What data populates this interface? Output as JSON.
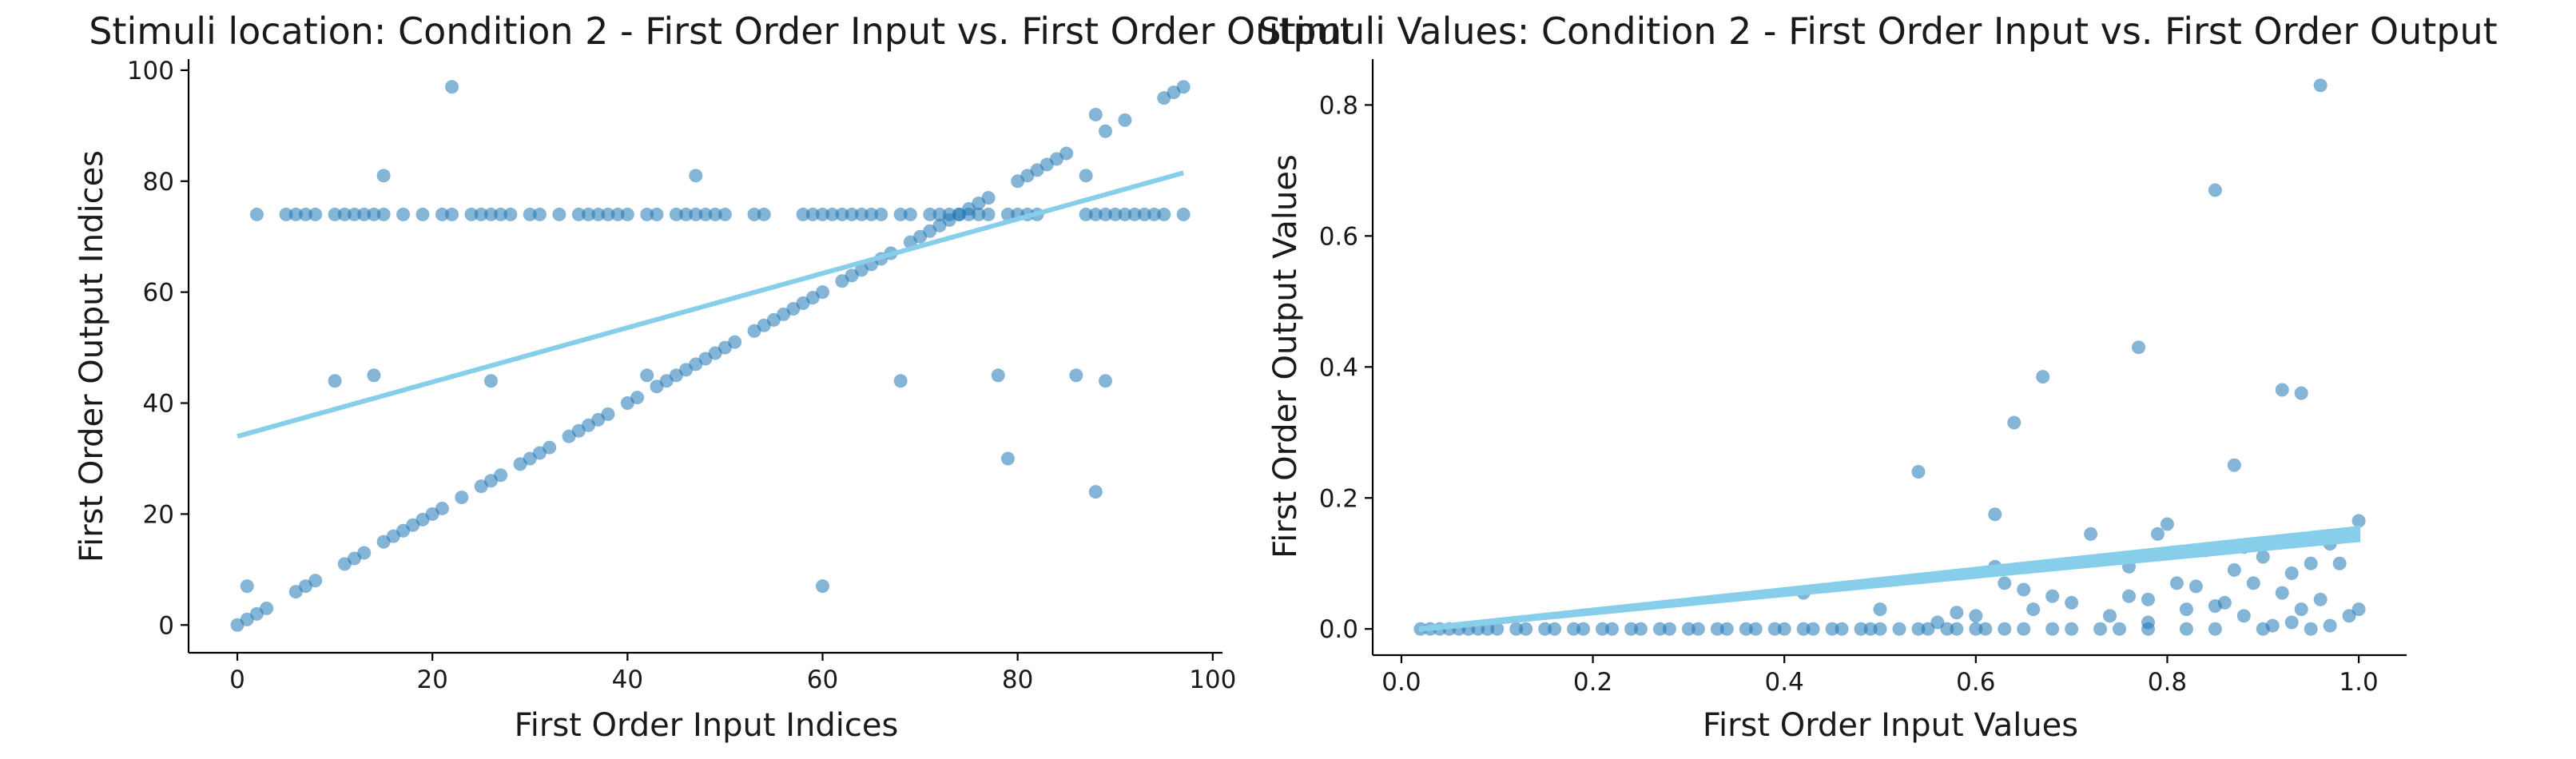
{
  "chart_data": [
    {
      "type": "scatter",
      "title": "Stimuli location: Condition 2 - First Order Input vs. First Order Output",
      "xlabel": "First Order Input Indices",
      "ylabel": "First Order Output Indices",
      "xlim": [
        -5,
        101
      ],
      "ylim": [
        -5,
        102
      ],
      "xticks": [
        0,
        20,
        40,
        60,
        80,
        100
      ],
      "yticks": [
        0,
        20,
        40,
        60,
        80,
        100
      ],
      "xtick_labels": [
        "0",
        "20",
        "40",
        "60",
        "80",
        "100"
      ],
      "ytick_labels": [
        "0",
        "20",
        "40",
        "60",
        "80",
        "100"
      ],
      "grid": false,
      "point_color": "#1f77b4",
      "line_color": "#87ceeb",
      "regression_line": {
        "x": [
          0,
          97
        ],
        "y": [
          34,
          81.5
        ]
      },
      "points": [
        [
          0,
          0
        ],
        [
          1,
          1
        ],
        [
          1,
          7
        ],
        [
          2,
          2
        ],
        [
          2,
          74
        ],
        [
          3,
          3
        ],
        [
          6,
          6
        ],
        [
          7,
          7
        ],
        [
          8,
          8
        ],
        [
          10,
          44
        ],
        [
          11,
          11
        ],
        [
          12,
          12
        ],
        [
          13,
          13
        ],
        [
          14,
          45
        ],
        [
          15,
          15
        ],
        [
          16,
          16
        ],
        [
          17,
          17
        ],
        [
          18,
          18
        ],
        [
          19,
          19
        ],
        [
          20,
          20
        ],
        [
          21,
          21
        ],
        [
          22,
          97
        ],
        [
          23,
          23
        ],
        [
          25,
          25
        ],
        [
          26,
          26
        ],
        [
          26,
          44
        ],
        [
          27,
          27
        ],
        [
          29,
          29
        ],
        [
          30,
          30
        ],
        [
          31,
          31
        ],
        [
          32,
          32
        ],
        [
          34,
          34
        ],
        [
          35,
          35
        ],
        [
          36,
          36
        ],
        [
          37,
          37
        ],
        [
          38,
          38
        ],
        [
          40,
          40
        ],
        [
          41,
          41
        ],
        [
          42,
          45
        ],
        [
          43,
          43
        ],
        [
          44,
          44
        ],
        [
          45,
          45
        ],
        [
          46,
          46
        ],
        [
          47,
          47
        ],
        [
          48,
          48
        ],
        [
          49,
          49
        ],
        [
          50,
          50
        ],
        [
          51,
          51
        ],
        [
          53,
          53
        ],
        [
          54,
          54
        ],
        [
          55,
          55
        ],
        [
          56,
          56
        ],
        [
          57,
          57
        ],
        [
          58,
          58
        ],
        [
          59,
          59
        ],
        [
          60,
          60
        ],
        [
          60,
          7
        ],
        [
          62,
          62
        ],
        [
          63,
          63
        ],
        [
          64,
          64
        ],
        [
          65,
          65
        ],
        [
          66,
          66
        ],
        [
          67,
          67
        ],
        [
          68,
          44
        ],
        [
          69,
          69
        ],
        [
          70,
          70
        ],
        [
          71,
          71
        ],
        [
          72,
          72
        ],
        [
          73,
          73
        ],
        [
          74,
          74
        ],
        [
          75,
          75
        ],
        [
          76,
          76
        ],
        [
          77,
          77
        ],
        [
          78,
          45
        ],
        [
          79,
          30
        ],
        [
          80,
          80
        ],
        [
          81,
          81
        ],
        [
          82,
          82
        ],
        [
          83,
          83
        ],
        [
          84,
          84
        ],
        [
          85,
          85
        ],
        [
          86,
          45
        ],
        [
          87,
          81
        ],
        [
          88,
          92
        ],
        [
          88,
          24
        ],
        [
          89,
          89
        ],
        [
          89,
          44
        ],
        [
          91,
          91
        ],
        [
          95,
          95
        ],
        [
          96,
          96
        ],
        [
          97,
          97
        ],
        [
          15,
          81
        ],
        [
          47,
          81
        ],
        [
          5,
          74
        ],
        [
          6,
          74
        ],
        [
          7,
          74
        ],
        [
          8,
          74
        ],
        [
          10,
          74
        ],
        [
          11,
          74
        ],
        [
          12,
          74
        ],
        [
          13,
          74
        ],
        [
          14,
          74
        ],
        [
          15,
          74
        ],
        [
          17,
          74
        ],
        [
          19,
          74
        ],
        [
          21,
          74
        ],
        [
          22,
          74
        ],
        [
          24,
          74
        ],
        [
          25,
          74
        ],
        [
          26,
          74
        ],
        [
          27,
          74
        ],
        [
          28,
          74
        ],
        [
          30,
          74
        ],
        [
          31,
          74
        ],
        [
          33,
          74
        ],
        [
          35,
          74
        ],
        [
          36,
          74
        ],
        [
          37,
          74
        ],
        [
          38,
          74
        ],
        [
          39,
          74
        ],
        [
          40,
          74
        ],
        [
          42,
          74
        ],
        [
          43,
          74
        ],
        [
          45,
          74
        ],
        [
          46,
          74
        ],
        [
          47,
          74
        ],
        [
          48,
          74
        ],
        [
          49,
          74
        ],
        [
          50,
          74
        ],
        [
          53,
          74
        ],
        [
          54,
          74
        ],
        [
          58,
          74
        ],
        [
          59,
          74
        ],
        [
          60,
          74
        ],
        [
          61,
          74
        ],
        [
          62,
          74
        ],
        [
          63,
          74
        ],
        [
          64,
          74
        ],
        [
          65,
          74
        ],
        [
          66,
          74
        ],
        [
          68,
          74
        ],
        [
          69,
          74
        ],
        [
          71,
          74
        ],
        [
          72,
          74
        ],
        [
          73,
          74
        ],
        [
          74,
          74
        ],
        [
          75,
          74
        ],
        [
          76,
          74
        ],
        [
          77,
          74
        ],
        [
          79,
          74
        ],
        [
          80,
          74
        ],
        [
          81,
          74
        ],
        [
          82,
          74
        ],
        [
          87,
          74
        ],
        [
          88,
          74
        ],
        [
          89,
          74
        ],
        [
          90,
          74
        ],
        [
          91,
          74
        ],
        [
          92,
          74
        ],
        [
          93,
          74
        ],
        [
          94,
          74
        ],
        [
          95,
          74
        ],
        [
          97,
          74
        ]
      ]
    },
    {
      "type": "scatter",
      "title": "Stimuli Values: Condition 2 - First Order Input vs. First Order Output",
      "xlabel": "First Order Input Values",
      "ylabel": "First Order Output Values",
      "xlim": [
        -0.03,
        1.05
      ],
      "ylim": [
        -0.04,
        0.87
      ],
      "xticks": [
        0.0,
        0.2,
        0.4,
        0.6,
        0.8,
        1.0
      ],
      "yticks": [
        0.0,
        0.2,
        0.4,
        0.6,
        0.8
      ],
      "xtick_labels": [
        "0.0",
        "0.2",
        "0.4",
        "0.6",
        "0.8",
        "1.0"
      ],
      "ytick_labels": [
        "0.0",
        "0.2",
        "0.4",
        "0.6",
        "0.8"
      ],
      "grid": false,
      "point_color": "#1f77b4",
      "line_color": "#87ceeb",
      "regression_band": {
        "x": [
          0.02,
          1.0
        ],
        "y_lower": [
          -0.002,
          0.135
        ],
        "y_upper": [
          0.002,
          0.155
        ]
      },
      "points": [
        [
          0.02,
          0
        ],
        [
          0.03,
          0
        ],
        [
          0.04,
          0
        ],
        [
          0.05,
          0
        ],
        [
          0.06,
          0
        ],
        [
          0.07,
          0
        ],
        [
          0.08,
          0
        ],
        [
          0.09,
          0
        ],
        [
          0.1,
          0
        ],
        [
          0.12,
          0
        ],
        [
          0.13,
          0
        ],
        [
          0.15,
          0
        ],
        [
          0.16,
          0
        ],
        [
          0.18,
          0
        ],
        [
          0.19,
          0
        ],
        [
          0.21,
          0
        ],
        [
          0.22,
          0
        ],
        [
          0.24,
          0
        ],
        [
          0.25,
          0
        ],
        [
          0.27,
          0
        ],
        [
          0.28,
          0
        ],
        [
          0.3,
          0
        ],
        [
          0.31,
          0
        ],
        [
          0.33,
          0
        ],
        [
          0.34,
          0
        ],
        [
          0.36,
          0
        ],
        [
          0.37,
          0
        ],
        [
          0.39,
          0
        ],
        [
          0.4,
          0
        ],
        [
          0.42,
          0
        ],
        [
          0.43,
          0
        ],
        [
          0.45,
          0
        ],
        [
          0.46,
          0
        ],
        [
          0.48,
          0
        ],
        [
          0.49,
          0
        ],
        [
          0.5,
          0
        ],
        [
          0.52,
          0
        ],
        [
          0.54,
          0
        ],
        [
          0.55,
          0
        ],
        [
          0.57,
          0
        ],
        [
          0.58,
          0
        ],
        [
          0.6,
          0
        ],
        [
          0.61,
          0
        ],
        [
          0.63,
          0
        ],
        [
          0.65,
          0
        ],
        [
          0.68,
          0
        ],
        [
          0.7,
          0
        ],
        [
          0.73,
          0
        ],
        [
          0.75,
          0
        ],
        [
          0.78,
          0
        ],
        [
          0.82,
          0
        ],
        [
          0.85,
          0
        ],
        [
          0.9,
          0
        ],
        [
          0.95,
          0
        ],
        [
          0.42,
          0.055
        ],
        [
          0.5,
          0.03
        ],
        [
          0.54,
          0.24
        ],
        [
          0.56,
          0.01
        ],
        [
          0.58,
          0.025
        ],
        [
          0.6,
          0.02
        ],
        [
          0.62,
          0.175
        ],
        [
          0.62,
          0.095
        ],
        [
          0.63,
          0.07
        ],
        [
          0.64,
          0.315
        ],
        [
          0.65,
          0.06
        ],
        [
          0.66,
          0.03
        ],
        [
          0.67,
          0.385
        ],
        [
          0.68,
          0.05
        ],
        [
          0.7,
          0.04
        ],
        [
          0.72,
          0.145
        ],
        [
          0.74,
          0.02
        ],
        [
          0.76,
          0.05
        ],
        [
          0.77,
          0.43
        ],
        [
          0.78,
          0.045
        ],
        [
          0.78,
          0.01
        ],
        [
          0.79,
          0.145
        ],
        [
          0.8,
          0.16
        ],
        [
          0.81,
          0.07
        ],
        [
          0.82,
          0.03
        ],
        [
          0.83,
          0.065
        ],
        [
          0.84,
          0.12
        ],
        [
          0.85,
          0.67
        ],
        [
          0.85,
          0.035
        ],
        [
          0.86,
          0.04
        ],
        [
          0.87,
          0.25
        ],
        [
          0.87,
          0.09
        ],
        [
          0.88,
          0.125
        ],
        [
          0.89,
          0.07
        ],
        [
          0.9,
          0.11
        ],
        [
          0.91,
          0.005
        ],
        [
          0.92,
          0.365
        ],
        [
          0.92,
          0.055
        ],
        [
          0.93,
          0.01
        ],
        [
          0.94,
          0.36
        ],
        [
          0.94,
          0.03
        ],
        [
          0.95,
          0.1
        ],
        [
          0.96,
          0.83
        ],
        [
          0.96,
          0.045
        ],
        [
          0.97,
          0.13
        ],
        [
          0.97,
          0.005
        ],
        [
          0.98,
          0.1
        ],
        [
          0.99,
          0.02
        ],
        [
          1.0,
          0.165
        ],
        [
          1.0,
          0.03
        ],
        [
          0.88,
          0.02
        ],
        [
          0.93,
          0.085
        ],
        [
          0.76,
          0.095
        ]
      ]
    }
  ]
}
